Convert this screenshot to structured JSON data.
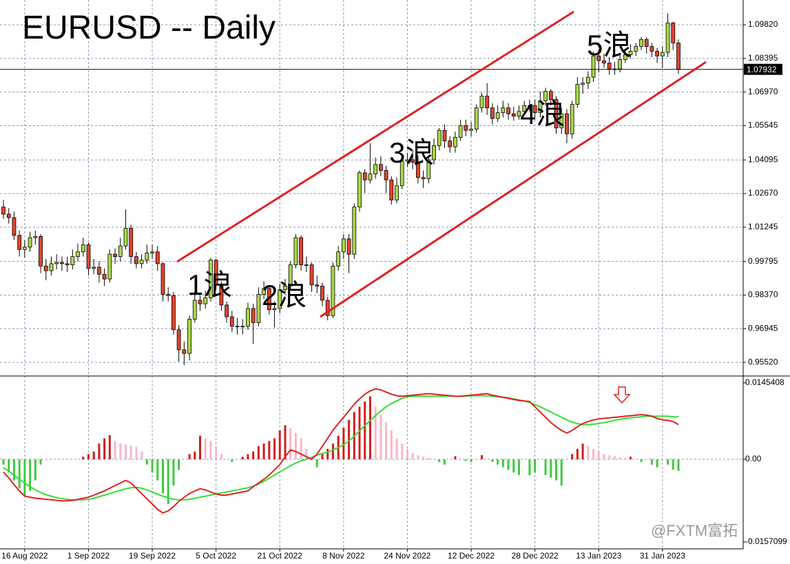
{
  "chart_data": {
    "type": "candlestick",
    "title": "EURUSD -- Daily",
    "categories": [
      null,
      null,
      null,
      null,
      "16 Aug 2022",
      null,
      null,
      null,
      null,
      null,
      null,
      null,
      null,
      null,
      null,
      null,
      "1 Sep 2022",
      null,
      null,
      null,
      null,
      null,
      null,
      null,
      null,
      null,
      null,
      null,
      "19 Sep 2022",
      null,
      null,
      null,
      null,
      null,
      null,
      null,
      null,
      null,
      null,
      null,
      "5 Oct 2022",
      null,
      null,
      null,
      null,
      null,
      null,
      null,
      null,
      null,
      null,
      null,
      "21 Oct 2022",
      null,
      null,
      null,
      null,
      null,
      null,
      null,
      null,
      null,
      null,
      null,
      "8 Nov 2022",
      null,
      null,
      null,
      null,
      null,
      null,
      null,
      null,
      null,
      null,
      null,
      "24 Nov 2022",
      null,
      null,
      null,
      null,
      null,
      null,
      null,
      null,
      null,
      null,
      null,
      "12 Dec 2022",
      null,
      null,
      null,
      null,
      null,
      null,
      null,
      null,
      null,
      null,
      null,
      "28 Dec 2022",
      null,
      null,
      null,
      null,
      null,
      null,
      null,
      null,
      null,
      null,
      null,
      "13 Jan 2023",
      null,
      null,
      null,
      null,
      null,
      null,
      null,
      null,
      null,
      null,
      null,
      "31 Jan 2023",
      null,
      null,
      null
    ],
    "open": [
      1.021,
      1.018,
      1.0165,
      1.009,
      1.003,
      1.004,
      1.008,
      1.0085,
      0.996,
      0.994,
      0.997,
      0.9975,
      0.997,
      0.9965,
      1.0,
      1.002,
      1.005,
      0.995,
      0.9955,
      0.9925,
      0.9905,
      1.001,
      1.0,
      1.0045,
      1.012,
      1.0,
      0.997,
      0.9985,
      1.0015,
      1.002,
      0.997,
      0.984,
      0.9835,
      0.969,
      0.9605,
      0.959,
      0.9735,
      0.9815,
      0.98,
      0.9825,
      0.9985,
      0.988,
      0.9795,
      0.9745,
      0.9705,
      0.9705,
      0.9705,
      0.978,
      0.972,
      0.984,
      0.9865,
      0.9775,
      0.978,
      0.986,
      0.9875,
      0.9965,
      1.008,
      0.9965,
      0.9965,
      0.988,
      0.9875,
      0.9815,
      0.975,
      0.996,
      1.002,
      1.0075,
      1.001,
      1.021,
      1.0355,
      1.0325,
      1.035,
      1.039,
      1.0365,
      1.0325,
      1.024,
      1.03,
      1.0405,
      1.041,
      1.04,
      1.0335,
      1.033,
      1.041,
      1.047,
      1.0535,
      1.049,
      1.0465,
      1.0505,
      1.0555,
      1.0535,
      1.054,
      1.063,
      1.068,
      1.063,
      1.0585,
      1.061,
      1.063,
      1.0605,
      1.0595,
      1.0615,
      1.064,
      1.064,
      1.061,
      1.066,
      1.07,
      1.0665,
      1.0545,
      1.0605,
      1.052,
      1.0645,
      1.073,
      1.0735,
      1.076,
      1.085,
      1.083,
      1.082,
      1.0795,
      1.0795,
      1.0835,
      1.0855,
      1.087,
      1.089,
      1.092,
      1.089,
      1.087,
      1.085,
      1.0865,
      1.099,
      1.0905
    ],
    "high": [
      1.024,
      1.0205,
      1.019,
      1.011,
      1.007,
      1.0105,
      1.011,
      1.0095,
      0.999,
      1.0,
      1.001,
      1.0,
      1.0,
      1.003,
      1.0055,
      1.008,
      1.006,
      0.999,
      0.998,
      0.995,
      1.003,
      1.0035,
      1.008,
      1.02,
      1.0135,
      1.002,
      1.001,
      1.005,
      1.005,
      1.0045,
      0.9975,
      0.987,
      0.985,
      0.971,
      0.964,
      0.975,
      0.985,
      0.9835,
      0.9855,
      0.9995,
      0.999,
      0.9895,
      0.981,
      0.977,
      0.974,
      0.9735,
      0.9805,
      0.98,
      0.987,
      0.9895,
      0.9875,
      0.981,
      0.9885,
      0.9905,
      0.998,
      1.0095,
      1.009,
      1.0,
      0.9975,
      0.992,
      0.989,
      0.983,
      0.9975,
      1.0045,
      1.0095,
      1.0095,
      1.0225,
      1.0365,
      1.037,
      1.048,
      1.042,
      1.0425,
      1.0385,
      1.034,
      1.0335,
      1.042,
      1.044,
      1.045,
      1.043,
      1.0365,
      1.043,
      1.05,
      1.0545,
      1.056,
      1.051,
      1.053,
      1.058,
      1.058,
      1.057,
      1.0645,
      1.0695,
      1.0735,
      1.065,
      1.064,
      1.066,
      1.065,
      1.0635,
      1.064,
      1.066,
      1.0665,
      1.0665,
      1.07,
      1.0715,
      1.071,
      1.068,
      1.063,
      1.0625,
      1.066,
      1.076,
      1.076,
      1.0785,
      1.087,
      1.0875,
      1.086,
      1.0845,
      1.0825,
      1.086,
      1.0875,
      1.09,
      1.0905,
      1.093,
      1.093,
      1.0905,
      1.0885,
      1.089,
      1.103,
      1.0995,
      1.092
    ],
    "low": [
      1.016,
      1.014,
      1.007,
      1.0,
      0.9995,
      1.002,
      1.005,
      0.993,
      0.99,
      0.992,
      0.9945,
      0.994,
      0.9935,
      0.9945,
      0.998,
      1.0,
      0.992,
      0.9925,
      0.989,
      0.9875,
      0.989,
      0.997,
      0.998,
      1.003,
      0.997,
      0.995,
      0.995,
      0.997,
      0.999,
      0.994,
      0.981,
      0.981,
      0.967,
      0.9555,
      0.954,
      0.956,
      0.972,
      0.977,
      0.978,
      0.981,
      0.986,
      0.977,
      0.972,
      0.968,
      0.967,
      0.967,
      0.969,
      0.963,
      0.9705,
      0.982,
      0.9755,
      0.97,
      0.976,
      0.984,
      0.986,
      0.995,
      0.994,
      0.9935,
      0.985,
      0.9845,
      0.979,
      0.973,
      0.974,
      0.994,
      0.999,
      0.993,
      0.999,
      1.019,
      1.027,
      1.031,
      1.033,
      1.034,
      1.027,
      1.022,
      1.0225,
      1.0285,
      1.038,
      1.037,
      1.031,
      1.029,
      1.031,
      1.039,
      1.045,
      1.046,
      1.044,
      1.044,
      1.049,
      1.051,
      1.051,
      1.0525,
      1.061,
      1.06,
      1.056,
      1.057,
      1.059,
      1.058,
      1.0575,
      1.058,
      1.06,
      1.0615,
      1.059,
      1.059,
      1.064,
      1.064,
      1.052,
      1.052,
      1.048,
      1.05,
      1.063,
      1.069,
      1.071,
      1.074,
      1.078,
      1.08,
      1.077,
      1.077,
      1.078,
      1.082,
      1.084,
      1.085,
      1.0875,
      1.086,
      1.0845,
      1.082,
      1.08,
      1.0845,
      1.0875,
      1.0775
    ],
    "close": [
      1.018,
      1.0165,
      1.009,
      1.003,
      1.004,
      1.008,
      1.0085,
      0.996,
      0.994,
      0.997,
      0.9975,
      0.997,
      0.9965,
      1.0,
      1.002,
      1.005,
      0.995,
      0.9955,
      0.9925,
      0.9905,
      1.001,
      1.0,
      1.0045,
      1.012,
      1.0,
      0.997,
      0.9985,
      1.0015,
      1.002,
      0.997,
      0.984,
      0.9835,
      0.969,
      0.9605,
      0.959,
      0.9735,
      0.9815,
      0.98,
      0.9825,
      0.9985,
      0.988,
      0.9795,
      0.9745,
      0.9705,
      0.9705,
      0.9705,
      0.978,
      0.972,
      0.984,
      0.9865,
      0.9775,
      0.978,
      0.986,
      0.9875,
      0.9965,
      1.008,
      0.9965,
      0.9965,
      0.988,
      0.9875,
      0.9815,
      0.975,
      0.996,
      1.002,
      1.0075,
      1.001,
      1.021,
      1.0355,
      1.0325,
      1.035,
      1.039,
      1.0365,
      1.0325,
      1.024,
      1.03,
      1.0405,
      1.041,
      1.04,
      1.0335,
      1.033,
      1.041,
      1.047,
      1.0535,
      1.049,
      1.0465,
      1.0505,
      1.0555,
      1.0535,
      1.054,
      1.063,
      1.068,
      1.063,
      1.0585,
      1.061,
      1.063,
      1.0605,
      1.0595,
      1.0615,
      1.064,
      1.064,
      1.061,
      1.066,
      1.07,
      1.0665,
      1.0545,
      1.0605,
      1.052,
      1.0645,
      1.073,
      1.0735,
      1.076,
      1.085,
      1.083,
      1.082,
      1.0795,
      1.0795,
      1.0835,
      1.0855,
      1.087,
      1.089,
      1.092,
      1.089,
      1.087,
      1.085,
      1.0865,
      1.099,
      1.0905,
      1.0793
    ],
    "up_color": "#a8d84a",
    "down_color": "#e0442c",
    "ylim": [
      0.9497,
      1.1087
    ],
    "yticks": [
      {
        "value": 1.0982,
        "label": "1.09820"
      },
      1.08395,
      {
        "value": 1.0697,
        "label": "1.06970"
      },
      1.05545,
      1.04095,
      {
        "value": 1.0267,
        "label": "1.02670"
      },
      1.01245,
      0.99795,
      {
        "value": 0.9837,
        "label": "0.98370"
      },
      0.96945,
      {
        "value": 0.9552,
        "label": "0.95520"
      }
    ],
    "grid": true,
    "current_price": 1.07932,
    "annotations": [
      "1浪",
      "2浪",
      "3浪",
      "4浪",
      "5浪"
    ],
    "watermark": "@FXTM富拓",
    "indicator": {
      "type": "macd",
      "ylim": [
        -0.01702,
        0.01559
      ],
      "yticks": [
        0.0145408,
        {
          "value": 0,
          "label": "0.00"
        },
        -0.0157099
      ],
      "macd": {
        "color": "#dd2222",
        "values": [
          -0.0024,
          -0.0035,
          -0.0048,
          -0.006,
          -0.007,
          -0.0072,
          -0.0074,
          -0.0075,
          -0.0076,
          -0.0077,
          -0.0078,
          -0.0079,
          -0.0079,
          -0.0078,
          -0.0076,
          -0.0074,
          -0.0072,
          -0.0068,
          -0.0064,
          -0.006,
          -0.0055,
          -0.005,
          -0.0045,
          -0.004,
          -0.0045,
          -0.0055,
          -0.0065,
          -0.0075,
          -0.0085,
          -0.0095,
          -0.0102,
          -0.0098,
          -0.009,
          -0.008,
          -0.0072,
          -0.0065,
          -0.006,
          -0.0056,
          -0.0058,
          -0.0062,
          -0.0066,
          -0.0068,
          -0.0068,
          -0.0066,
          -0.0064,
          -0.0062,
          -0.006,
          -0.0052,
          -0.0045,
          -0.0038,
          -0.003,
          -0.002,
          -0.001,
          0.0005,
          0.0018,
          0.0015,
          0.001,
          0.0005,
          0,
          0.001,
          0.0025,
          0.004,
          0.0055,
          0.0068,
          0.008,
          0.0092,
          0.0105,
          0.0115,
          0.0124,
          0.013,
          0.0134,
          0.0132,
          0.0128,
          0.0124,
          0.0121,
          0.012,
          0.0121,
          0.0122,
          0.0123,
          0.0124,
          0.0125,
          0.0124,
          0.0123,
          0.0122,
          0.0121,
          0.012,
          0.012,
          0.0121,
          0.0122,
          0.0123,
          0.0124,
          0.0125,
          0.0122,
          0.012,
          0.0118,
          0.0116,
          0.0114,
          0.0112,
          0.0111,
          0.011,
          0.01,
          0.009,
          0.008,
          0.007,
          0.0062,
          0.0055,
          0.005,
          0.0055,
          0.0062,
          0.0068,
          0.0072,
          0.0075,
          0.0077,
          0.0078,
          0.0079,
          0.008,
          0.0081,
          0.0082,
          0.0083,
          0.0084,
          0.0085,
          0.0084,
          0.0082,
          0.0078,
          0.0075,
          0.0074,
          0.0072,
          0.0066
        ]
      },
      "signal": {
        "color": "#33dd33",
        "values": [
          -0.0016,
          -0.0022,
          -0.003,
          -0.0038,
          -0.0045,
          -0.0052,
          -0.0058,
          -0.0063,
          -0.0067,
          -0.007,
          -0.0073,
          -0.0075,
          -0.0076,
          -0.0077,
          -0.0077,
          -0.0077,
          -0.0076,
          -0.0074,
          -0.0071,
          -0.0068,
          -0.0065,
          -0.0062,
          -0.0059,
          -0.0056,
          -0.0054,
          -0.0053,
          -0.0055,
          -0.0058,
          -0.0062,
          -0.0066,
          -0.007,
          -0.0073,
          -0.0076,
          -0.0077,
          -0.0077,
          -0.0076,
          -0.0074,
          -0.0072,
          -0.007,
          -0.0068,
          -0.0066,
          -0.0064,
          -0.0062,
          -0.006,
          -0.0058,
          -0.0056,
          -0.0054,
          -0.0051,
          -0.0047,
          -0.0042,
          -0.0036,
          -0.003,
          -0.0024,
          -0.0018,
          -0.0012,
          -0.0007,
          -0.0003,
          0,
          0.0004,
          0.0008,
          0.0011,
          0.0014,
          0.0018,
          0.0022,
          0.0028,
          0.0035,
          0.0044,
          0.0054,
          0.0064,
          0.0074,
          0.0083,
          0.0092,
          0.01,
          0.0106,
          0.0111,
          0.0116,
          0.0119,
          0.012,
          0.012,
          0.012,
          0.012,
          0.012,
          0.012,
          0.012,
          0.012,
          0.012,
          0.012,
          0.012,
          0.0121,
          0.0121,
          0.0121,
          0.0121,
          0.012,
          0.0119,
          0.0118,
          0.0117,
          0.0115,
          0.0113,
          0.0111,
          0.0108,
          0.0104,
          0.01,
          0.0095,
          0.009,
          0.0085,
          0.008,
          0.0075,
          0.0071,
          0.0068,
          0.0066,
          0.0066,
          0.0067,
          0.0068,
          0.007,
          0.0072,
          0.0074,
          0.0076,
          0.0078,
          0.0079,
          0.008,
          0.0081,
          0.0082,
          0.0082,
          0.0082,
          0.0082,
          0.0082,
          0.0081,
          0.0081
        ]
      },
      "histogram": {
        "colors": {
          "rising": "#d41c1c",
          "falling": "#f6b8c6",
          "negative": "#3ec93e"
        },
        "values": [
          -0.001,
          -0.0025,
          -0.004,
          -0.0055,
          -0.007,
          -0.006,
          -0.004,
          -0.001,
          0,
          0,
          0,
          0,
          0,
          0,
          0,
          0.0005,
          0.001,
          0.0015,
          0.003,
          0.004,
          0.0046,
          0.0035,
          0.003,
          0.0028,
          0.0026,
          0.0024,
          0.0015,
          -0.001,
          -0.0025,
          -0.004,
          -0.0065,
          -0.0085,
          -0.005,
          -0.002,
          0,
          0.001,
          0.0015,
          0.0045,
          0.004,
          0.0035,
          0.0025,
          0.001,
          0,
          -0.0005,
          0,
          0.0005,
          0.001,
          0.0015,
          0.0025,
          0.003,
          0.0035,
          0.004,
          0.0055,
          0.0065,
          0.006,
          0.005,
          0.004,
          0.002,
          0.0005,
          -0.0015,
          0.001,
          0.002,
          0.003,
          0.0045,
          0.006,
          0.0075,
          0.009,
          0.01,
          0.011,
          0.012,
          0.01,
          0.0085,
          0.007,
          0.0055,
          0.004,
          0.003,
          0.002,
          0.0012,
          0.0008,
          0.0005,
          0.0003,
          0,
          -0.0005,
          -0.001,
          0,
          0.0006,
          0,
          -0.0003,
          -0.0005,
          0,
          0.0008,
          0,
          -0.0005,
          -0.001,
          -0.0015,
          -0.002,
          -0.0025,
          -0.003,
          0,
          -0.003,
          -0.0025,
          0,
          -0.003,
          -0.0035,
          -0.004,
          -0.005,
          0,
          0.001,
          0.002,
          0.003,
          0.0025,
          0.002,
          0.0015,
          0.001,
          0.0008,
          0.0006,
          0.0004,
          0.0003,
          0.0005,
          0,
          -0.0005,
          0,
          -0.001,
          -0.0015,
          0,
          -0.001,
          -0.002,
          -0.0022
        ]
      }
    }
  }
}
